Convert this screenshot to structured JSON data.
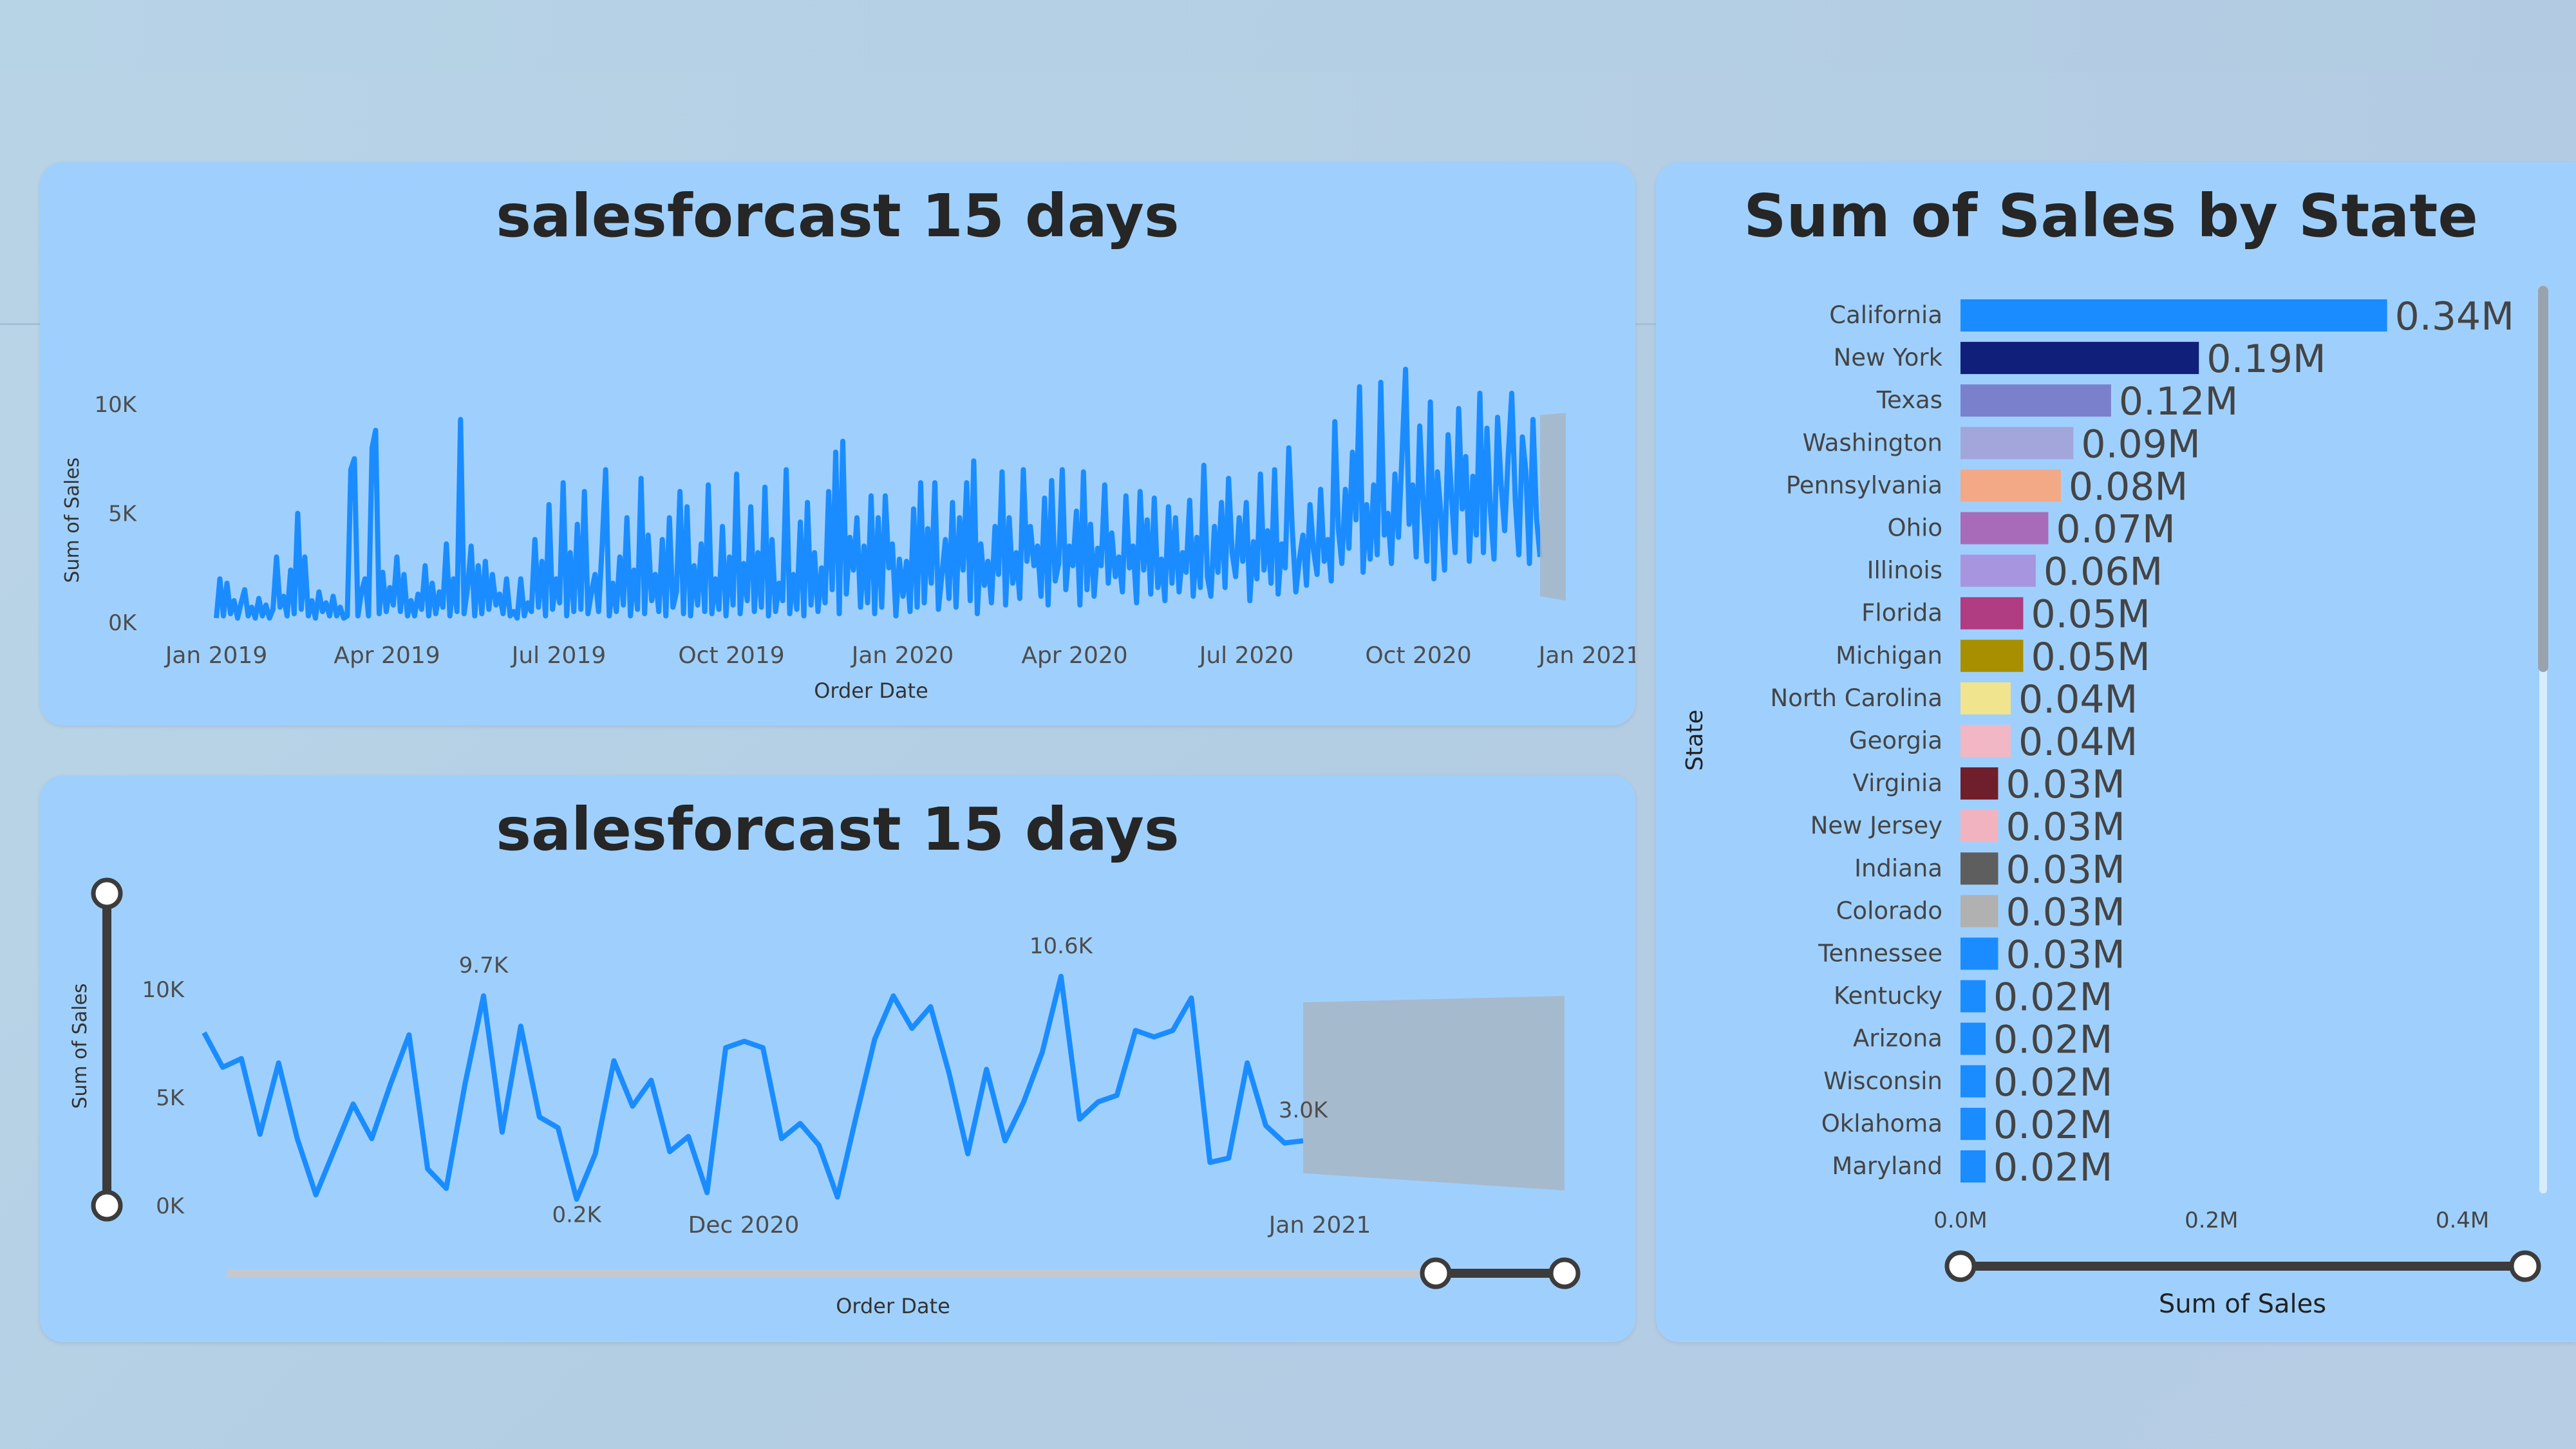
{
  "colors": {
    "line": "#1a8cff",
    "forecast_band": "#a7b6c6",
    "card_bg": "#9fd0fd",
    "title": "#262626",
    "axis_text": "#4d4d4d"
  },
  "top_chart": {
    "title": "salesforcast 15 days",
    "xlabel": "Order Date",
    "ylabel": "Sum of Sales",
    "y_ticks": [
      "0K",
      "5K",
      "10K"
    ],
    "x_ticks": [
      "Jan 2019",
      "Apr 2019",
      "Jul 2019",
      "Oct 2019",
      "Jan 2020",
      "Apr 2020",
      "Jul 2020",
      "Oct 2020",
      "Jan 2021"
    ]
  },
  "bottom_chart": {
    "title": "salesforcast 15 days",
    "xlabel": "Order Date",
    "ylabel": "Sum of Sales",
    "y_ticks": [
      "0K",
      "5K",
      "10K"
    ],
    "x_ticks": [
      "Dec 2020",
      "Jan 2021"
    ],
    "data_labels": [
      "9.7K",
      "0.2K",
      "10.6K",
      "3.0K"
    ]
  },
  "state_chart": {
    "title": "Sum of Sales by State",
    "ylabel": "State",
    "xlabel": "Sum of Sales",
    "x_ticks": [
      "0.0M",
      "0.2M",
      "0.4M"
    ]
  },
  "chart_data": [
    {
      "type": "line",
      "title": "salesforcast 15 days",
      "xlabel": "Order Date",
      "ylabel": "Sum of Sales",
      "ylim": [
        0,
        12000
      ],
      "xlim": [
        "2019-01-01",
        "2021-01-15"
      ],
      "series": [
        {
          "values": [
            200,
            2000,
            300,
            1800,
            400,
            1000,
            200,
            900,
            1500,
            300,
            700,
            200,
            1100,
            300,
            800,
            200,
            600,
            3000,
            700,
            1200,
            300,
            2400,
            400,
            5000,
            600,
            3000,
            300,
            1000,
            200,
            1400,
            500,
            900,
            300,
            1200,
            300,
            700,
            200,
            300,
            7000,
            7500,
            300,
            1400,
            2000,
            300,
            8000,
            8800,
            400,
            2300,
            500,
            1600,
            800,
            3000,
            500,
            2200,
            300,
            1000,
            300,
            1300,
            600,
            2600,
            300,
            1800,
            400,
            1400,
            700,
            3600,
            300,
            2000,
            500,
            9300,
            400,
            1600,
            3500,
            300,
            2600,
            400,
            2800,
            600,
            2200,
            800,
            1300,
            400,
            2000,
            300,
            500,
            200,
            2000,
            300,
            900,
            500,
            3800,
            700,
            2800,
            300,
            5400,
            600,
            2000,
            900,
            6400,
            300,
            3200,
            500,
            4500,
            600,
            6000,
            400,
            1400,
            2200,
            500,
            3500,
            7000,
            300,
            1800,
            500,
            3000,
            800,
            4800,
            300,
            2400,
            600,
            6600,
            400,
            4000,
            1000,
            2200,
            500,
            3800,
            300,
            4800,
            700,
            1400,
            6000,
            400,
            5300,
            300,
            2600,
            800,
            3600,
            500,
            6300,
            400,
            2000,
            600,
            4400,
            300,
            3000,
            800,
            6800,
            400,
            2700,
            1000,
            5300,
            500,
            3200,
            700,
            6200,
            300,
            3800,
            500,
            1800,
            1000,
            7000,
            400,
            2200,
            600,
            4600,
            300,
            5500,
            800,
            3200,
            500,
            2500,
            900,
            6000,
            1500,
            7800,
            400,
            8300,
            1300,
            3900,
            2400,
            4800,
            700,
            3500,
            900,
            5800,
            400,
            4800,
            700,
            5800,
            2500,
            3600,
            300,
            2900,
            1200,
            2800,
            500,
            5200,
            700,
            6400,
            900,
            4300,
            1800,
            6400,
            600,
            2200,
            3800,
            1100,
            5500,
            700,
            4800,
            2400,
            6400,
            1000,
            7400,
            400,
            3600,
            1700,
            2800,
            900,
            4400,
            2200,
            6900,
            800,
            4800,
            1800,
            3200,
            1100,
            7000,
            2800,
            4400,
            2600,
            3500,
            1200,
            5700,
            800,
            6500,
            1900,
            2700,
            7000,
            1500,
            3500,
            2600,
            5100,
            800,
            6900,
            1500,
            4500,
            1200,
            3400,
            2600,
            6300,
            1800,
            4100,
            2100,
            3000,
            1400,
            5800,
            2500,
            3500,
            900,
            6000,
            2400,
            4700,
            1300,
            5700,
            1600,
            2900,
            1000,
            5300,
            1800,
            4800,
            1400,
            3200,
            2300,
            5600,
            1200,
            3900,
            1600,
            7200,
            2100,
            1200,
            4400,
            2300,
            5500,
            1600,
            6600,
            3200,
            2100,
            4800,
            2800,
            5500,
            1000,
            3700,
            2000,
            6800,
            2400,
            4200,
            1800,
            7000,
            1300,
            3600,
            2500,
            8000,
            4200,
            1400,
            2900,
            4000,
            1700,
            5400,
            3300,
            2200,
            6100,
            2800,
            3800,
            1900,
            9200,
            4300,
            2700,
            6100,
            3400,
            7800,
            4700,
            10800,
            2300,
            5400,
            2900,
            6300,
            3100,
            11000,
            4000,
            5000,
            2700,
            6800,
            3900,
            7700,
            11600,
            4500,
            6300,
            3000,
            9000,
            5400,
            2800,
            10100,
            2000,
            6900,
            4900,
            2400,
            8600,
            5700,
            3200,
            9800,
            5200,
            7600,
            2800,
            6700,
            4000,
            10500,
            3200,
            8900,
            5100,
            2900,
            9400,
            6300,
            4200,
            7600,
            10500,
            5600,
            3100,
            8500,
            6900,
            2700,
            9300,
            4800,
            3000
          ]
        },
        {
          "name": "forecast",
          "x_range": [
            "2021-01-01",
            "2021-01-15"
          ],
          "upper": [
            9500,
            9600
          ],
          "lower": [
            1200,
            1000
          ]
        }
      ]
    },
    {
      "type": "line",
      "title": "salesforcast 15 days",
      "xlabel": "Order Date",
      "ylabel": "Sum of Sales",
      "ylim": [
        0,
        10000
      ],
      "series": [
        {
          "values": [
            8000,
            6400,
            6800,
            3300,
            6600,
            3100,
            500,
            2600,
            4700,
            3100,
            5600,
            7900,
            1700,
            800,
            5600,
            9700,
            3400,
            8300,
            4100,
            3600,
            300,
            2400,
            6700,
            4600,
            5800,
            2500,
            3200,
            600,
            7300,
            7600,
            7300,
            3100,
            3800,
            2800,
            400,
            4100,
            7700,
            9700,
            8200,
            9200,
            6100,
            2400,
            6300,
            3000,
            4800,
            7100,
            10600,
            4000,
            4800,
            5100,
            8100,
            7800,
            8100,
            9600,
            2000,
            2200,
            6600,
            3700,
            2900,
            3000
          ]
        },
        {
          "name": "forecast",
          "upper": [
            9400,
            9700
          ],
          "lower": [
            1500,
            700
          ]
        }
      ],
      "data_labels": [
        {
          "label": "9.7K",
          "value": 9700
        },
        {
          "label": "0.2K",
          "value": 200
        },
        {
          "label": "10.6K",
          "value": 10600
        },
        {
          "label": "3.0K",
          "value": 3000
        }
      ]
    },
    {
      "type": "bar",
      "orientation": "horizontal",
      "title": "Sum of Sales by State",
      "xlabel": "Sum of Sales",
      "ylabel": "State",
      "xlim": [
        0,
        0.45
      ],
      "categories": [
        "California",
        "New York",
        "Texas",
        "Washington",
        "Pennsylvania",
        "Ohio",
        "Illinois",
        "Florida",
        "Michigan",
        "North Carolina",
        "Georgia",
        "Virginia",
        "New Jersey",
        "Indiana",
        "Colorado",
        "Tennessee",
        "Kentucky",
        "Arizona",
        "Wisconsin",
        "Oklahoma",
        "Maryland"
      ],
      "values": [
        0.34,
        0.19,
        0.12,
        0.09,
        0.08,
        0.07,
        0.06,
        0.05,
        0.05,
        0.04,
        0.04,
        0.03,
        0.03,
        0.03,
        0.03,
        0.03,
        0.02,
        0.02,
        0.02,
        0.02,
        0.02
      ],
      "value_labels": [
        "0.34M",
        "0.19M",
        "0.12M",
        "0.09M",
        "0.08M",
        "0.07M",
        "0.06M",
        "0.05M",
        "0.05M",
        "0.04M",
        "0.04M",
        "0.03M",
        "0.03M",
        "0.03M",
        "0.03M",
        "0.03M",
        "0.02M",
        "0.02M",
        "0.02M",
        "0.02M",
        "0.02M"
      ],
      "bar_colors": [
        "#1a8cff",
        "#0f1f7a",
        "#7b80cc",
        "#a3a6db",
        "#f3a986",
        "#a86bba",
        "#a895e0",
        "#b03c82",
        "#a88f00",
        "#f1e48f",
        "#f2b7c4",
        "#6e1f2b",
        "#f1b3c0",
        "#5e5e5e",
        "#b1b1b1",
        "#1a8cff",
        "#1a8cff",
        "#1a8cff",
        "#1a8cff",
        "#1a8cff",
        "#1a8cff"
      ]
    }
  ]
}
